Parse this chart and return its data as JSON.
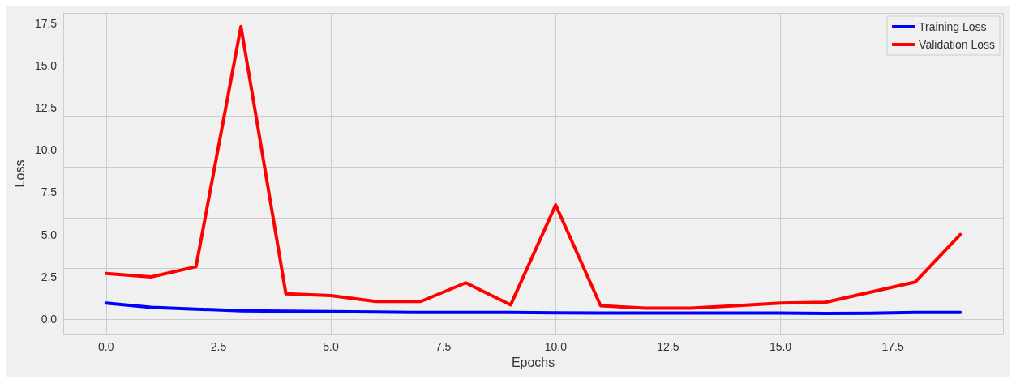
{
  "chart_data": {
    "type": "line",
    "xlabel": "Epochs",
    "ylabel": "Loss",
    "x": [
      0,
      1,
      2,
      3,
      4,
      5,
      6,
      7,
      8,
      9,
      10,
      11,
      12,
      13,
      14,
      15,
      16,
      17,
      18,
      19
    ],
    "series": [
      {
        "name": "Training Loss",
        "color": "#0000ff",
        "values": [
          0.95,
          0.7,
          0.6,
          0.5,
          0.47,
          0.45,
          0.43,
          0.4,
          0.4,
          0.4,
          0.38,
          0.37,
          0.37,
          0.37,
          0.37,
          0.37,
          0.35,
          0.36,
          0.4,
          0.4
        ]
      },
      {
        "name": "Validation Loss",
        "color": "#ff0000",
        "values": [
          2.7,
          2.5,
          3.1,
          17.3,
          1.5,
          1.4,
          1.05,
          1.05,
          2.15,
          0.85,
          6.75,
          0.8,
          0.65,
          0.65,
          0.8,
          0.95,
          1.0,
          1.6,
          2.2,
          5.0
        ]
      }
    ],
    "xlim": [
      -0.95,
      19.95
    ],
    "xticks": [
      {
        "value": 0,
        "label": "0.0"
      },
      {
        "value": 2.5,
        "label": "2.5"
      },
      {
        "value": 5,
        "label": "5.0"
      },
      {
        "value": 7.5,
        "label": "7.5"
      },
      {
        "value": 10,
        "label": "10.0"
      },
      {
        "value": 12.5,
        "label": "12.5"
      },
      {
        "value": 15,
        "label": "15.0"
      },
      {
        "value": 17.5,
        "label": "17.5"
      }
    ],
    "ylim": [
      -0.9,
      18.1
    ],
    "yticks": [
      {
        "value": 0,
        "label": "0.0"
      },
      {
        "value": 2.5,
        "label": "2.5"
      },
      {
        "value": 5,
        "label": "5.0"
      },
      {
        "value": 7.5,
        "label": "7.5"
      },
      {
        "value": 10,
        "label": "10.0"
      },
      {
        "value": 12.5,
        "label": "12.5"
      },
      {
        "value": 15,
        "label": "15.0"
      },
      {
        "value": 17.5,
        "label": "17.5"
      }
    ],
    "grid": true,
    "legend": "top right",
    "marker": "none",
    "line_style": "solid"
  }
}
